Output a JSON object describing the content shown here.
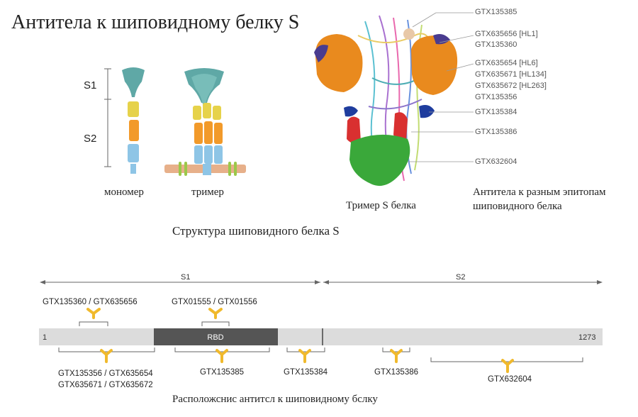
{
  "title": "Антитела к шиповидному белку S",
  "structure": {
    "domain_s1": "S1",
    "domain_s2": "S2",
    "monomer_label": "мономер",
    "trimer_label": "тример",
    "caption": "Структура шиповидного белка S"
  },
  "protein": {
    "trimer_caption": "Тример S белка",
    "epitope_caption_line1": "Антитела к разным эпитопам",
    "epitope_caption_line2": "шиповидного белка",
    "labels": [
      "GTX135385",
      "GTX635656 [HL1]",
      "GTX135360",
      "GTX635654 [HL6]",
      "GTX635671 [HL134]",
      "GTX635672 [HL263]",
      "GTX135356",
      "GTX135384",
      "GTX135386",
      "GTX632604"
    ]
  },
  "bar": {
    "s1": "S1",
    "s2": "S2",
    "start": "1",
    "end": "1273",
    "rbd": "RBD",
    "top_left": "GTX135360 / GTX635656",
    "top_mid": "GTX01555 / GTX01556",
    "bottom_1_line1": "GTX135356 / GTX635654",
    "bottom_1_line2": "GTX635671 / GTX635672",
    "bottom_2": "GTX135385",
    "bottom_3": "GTX135384",
    "bottom_4": "GTX135386",
    "bottom_5": "GTX632604",
    "caption": "Расположснис антитсл к шиповидному бслку"
  },
  "colors": {
    "antibody": "#f0b92c",
    "bar_gray": "#dcdcdc",
    "rbd": "#555555",
    "teal": "#5fa8a6",
    "orange": "#e98a1e",
    "green": "#3aa83a",
    "red": "#d93030",
    "blue": "#1f3d9e"
  }
}
